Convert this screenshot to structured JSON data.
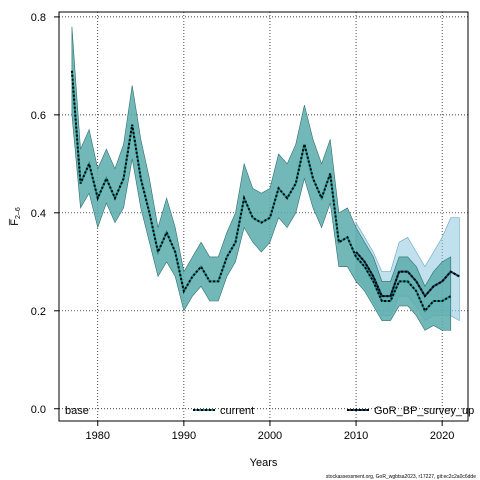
{
  "chart_data": {
    "type": "line",
    "xlabel": "Years",
    "ylabel": "F̅",
    "ylabel_sub": "2–6",
    "xlim": [
      1975.5,
      2023
    ],
    "ylim": [
      -0.025,
      0.81
    ],
    "x_ticks": [
      1980,
      1990,
      2000,
      2010,
      2020
    ],
    "y_ticks": [
      0.0,
      0.2,
      0.4,
      0.6,
      0.8
    ],
    "y_tick_labels": [
      "0.0",
      "0.2",
      "0.4",
      "0.6",
      "0.8"
    ],
    "grid": true,
    "legend": {
      "placement": "bottom",
      "title": "base",
      "entries": [
        "current",
        "GoR_BP_survey_up"
      ]
    },
    "series": [
      {
        "name": "current",
        "color": "#1a8a8a",
        "band_color": "#5aacac",
        "x": [
          1977,
          1978,
          1979,
          1980,
          1981,
          1982,
          1983,
          1984,
          1985,
          1986,
          1987,
          1988,
          1989,
          1990,
          1991,
          1992,
          1993,
          1994,
          1995,
          1996,
          1997,
          1998,
          1999,
          2000,
          2001,
          2002,
          2003,
          2004,
          2005,
          2006,
          2007,
          2008,
          2009,
          2010,
          2011,
          2012,
          2013,
          2014,
          2015,
          2016,
          2017,
          2018,
          2019,
          2020,
          2021
        ],
        "values": [
          0.69,
          0.46,
          0.5,
          0.43,
          0.47,
          0.43,
          0.47,
          0.58,
          0.47,
          0.4,
          0.32,
          0.36,
          0.32,
          0.24,
          0.27,
          0.29,
          0.26,
          0.26,
          0.31,
          0.34,
          0.43,
          0.39,
          0.38,
          0.39,
          0.45,
          0.43,
          0.46,
          0.54,
          0.47,
          0.43,
          0.48,
          0.34,
          0.35,
          0.31,
          0.29,
          0.26,
          0.22,
          0.22,
          0.26,
          0.26,
          0.24,
          0.2,
          0.22,
          0.22,
          0.23
        ],
        "lower": [
          0.6,
          0.41,
          0.44,
          0.37,
          0.42,
          0.38,
          0.41,
          0.51,
          0.41,
          0.34,
          0.27,
          0.3,
          0.27,
          0.2,
          0.23,
          0.25,
          0.22,
          0.22,
          0.27,
          0.3,
          0.37,
          0.34,
          0.32,
          0.34,
          0.39,
          0.37,
          0.4,
          0.47,
          0.41,
          0.37,
          0.42,
          0.29,
          0.29,
          0.26,
          0.24,
          0.21,
          0.18,
          0.18,
          0.21,
          0.21,
          0.19,
          0.16,
          0.17,
          0.16,
          0.16
        ],
        "upper": [
          0.78,
          0.53,
          0.57,
          0.49,
          0.53,
          0.49,
          0.54,
          0.66,
          0.55,
          0.47,
          0.37,
          0.43,
          0.37,
          0.28,
          0.31,
          0.34,
          0.31,
          0.31,
          0.36,
          0.4,
          0.5,
          0.45,
          0.44,
          0.45,
          0.52,
          0.5,
          0.54,
          0.62,
          0.55,
          0.5,
          0.55,
          0.4,
          0.41,
          0.37,
          0.34,
          0.31,
          0.26,
          0.26,
          0.31,
          0.31,
          0.29,
          0.25,
          0.28,
          0.3,
          0.31
        ]
      },
      {
        "name": "GoR_BP_survey_up",
        "color": "#1a3a5a",
        "band_color": "#8ec6e0",
        "x": [
          2010,
          2011,
          2012,
          2013,
          2014,
          2015,
          2016,
          2017,
          2018,
          2019,
          2020,
          2021,
          2022
        ],
        "values": [
          0.32,
          0.3,
          0.27,
          0.23,
          0.23,
          0.28,
          0.28,
          0.26,
          0.23,
          0.25,
          0.26,
          0.28,
          0.27
        ],
        "lower": [
          0.27,
          0.25,
          0.22,
          0.19,
          0.19,
          0.23,
          0.23,
          0.21,
          0.18,
          0.19,
          0.19,
          0.19,
          0.18
        ],
        "upper": [
          0.38,
          0.35,
          0.32,
          0.28,
          0.28,
          0.34,
          0.35,
          0.32,
          0.29,
          0.32,
          0.35,
          0.39,
          0.39
        ]
      }
    ]
  },
  "footer": "stockassessment.org, GoR_wgbtsa2023, r17227, git:ec2c2a0c6dde"
}
